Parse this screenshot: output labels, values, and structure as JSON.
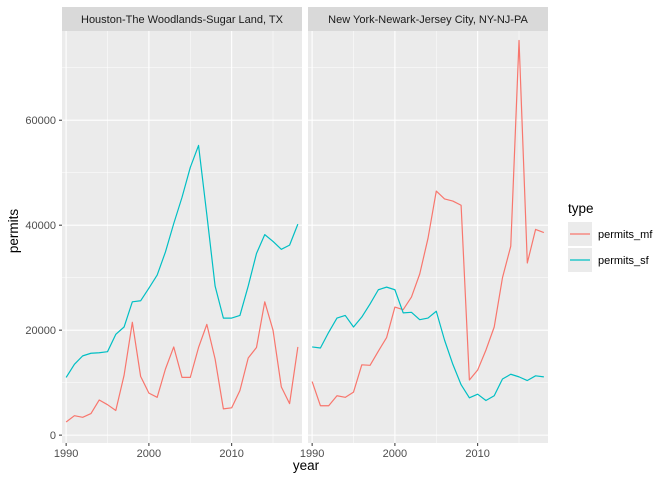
{
  "chart_data": {
    "type": "line",
    "xlabel": "year",
    "ylabel": "permits",
    "xlim": [
      1989.5,
      2018.5
    ],
    "ylim": [
      -1500,
      77000
    ],
    "x_ticks": [
      1990,
      2000,
      2010
    ],
    "x_tick_labels": [
      "1990",
      "2000",
      "2010"
    ],
    "y_ticks": [
      0,
      20000,
      40000,
      60000
    ],
    "y_tick_labels": [
      "0",
      "20000",
      "40000",
      "60000"
    ],
    "grid": true,
    "legend": {
      "title": "type",
      "position": "right",
      "entries": [
        "permits_mf",
        "permits_sf"
      ]
    },
    "colors": {
      "permits_mf": "#F8766D",
      "permits_sf": "#00BFC4",
      "panel_bg": "#EBEBEB",
      "strip_bg": "#D9D9D9",
      "grid": "#FFFFFF"
    },
    "panels": [
      {
        "label": "Houston-The Woodlands-Sugar Land, TX",
        "x": [
          1990,
          1991,
          1992,
          1993,
          1994,
          1995,
          1996,
          1997,
          1998,
          1999,
          2000,
          2001,
          2002,
          2003,
          2004,
          2005,
          2006,
          2007,
          2008,
          2009,
          2010,
          2011,
          2012,
          2013,
          2014,
          2015,
          2016,
          2017,
          2018
        ],
        "series": [
          {
            "name": "permits_mf",
            "values": [
              2500,
              3700,
              3400,
              4100,
              6700,
              5800,
              4700,
              11400,
              21500,
              11200,
              8000,
              7200,
              12600,
              16800,
              11000,
              11000,
              16700,
              21100,
              14500,
              5000,
              5200,
              8500,
              14700,
              16700,
              25400,
              20000,
              9200,
              6000,
              16800
            ]
          },
          {
            "name": "permits_sf",
            "values": [
              11000,
              13500,
              15100,
              15600,
              15700,
              15900,
              19200,
              20600,
              25400,
              25600,
              28000,
              30500,
              34900,
              40300,
              45300,
              51000,
              55200,
              42000,
              28400,
              22300,
              22300,
              22800,
              28400,
              34600,
              38200,
              36900,
              35400,
              36200,
              40200
            ]
          }
        ]
      },
      {
        "label": "New York-Newark-Jersey City, NY-NJ-PA",
        "x": [
          1990,
          1991,
          1992,
          1993,
          1994,
          1995,
          1996,
          1997,
          1998,
          1999,
          2000,
          2001,
          2002,
          2003,
          2004,
          2005,
          2006,
          2007,
          2008,
          2009,
          2010,
          2011,
          2012,
          2013,
          2014,
          2015,
          2016,
          2017,
          2018
        ],
        "series": [
          {
            "name": "permits_mf",
            "values": [
              10200,
              5600,
              5600,
              7500,
              7200,
              8200,
              13400,
              13300,
              16000,
              18600,
              24400,
              23900,
              26300,
              30700,
              37500,
              46500,
              45000,
              44600,
              43800,
              10500,
              12400,
              16200,
              20600,
              30000,
              36000,
              75200,
              32800,
              39200,
              38600
            ]
          },
          {
            "name": "permits_sf",
            "values": [
              16800,
              16600,
              19600,
              22300,
              22800,
              20600,
              22500,
              25000,
              27700,
              28200,
              27700,
              23300,
              23400,
              22000,
              22300,
              23600,
              18100,
              13500,
              9600,
              7100,
              7800,
              6600,
              7500,
              10700,
              11600,
              11100,
              10400,
              11300,
              11100
            ]
          }
        ]
      }
    ]
  }
}
